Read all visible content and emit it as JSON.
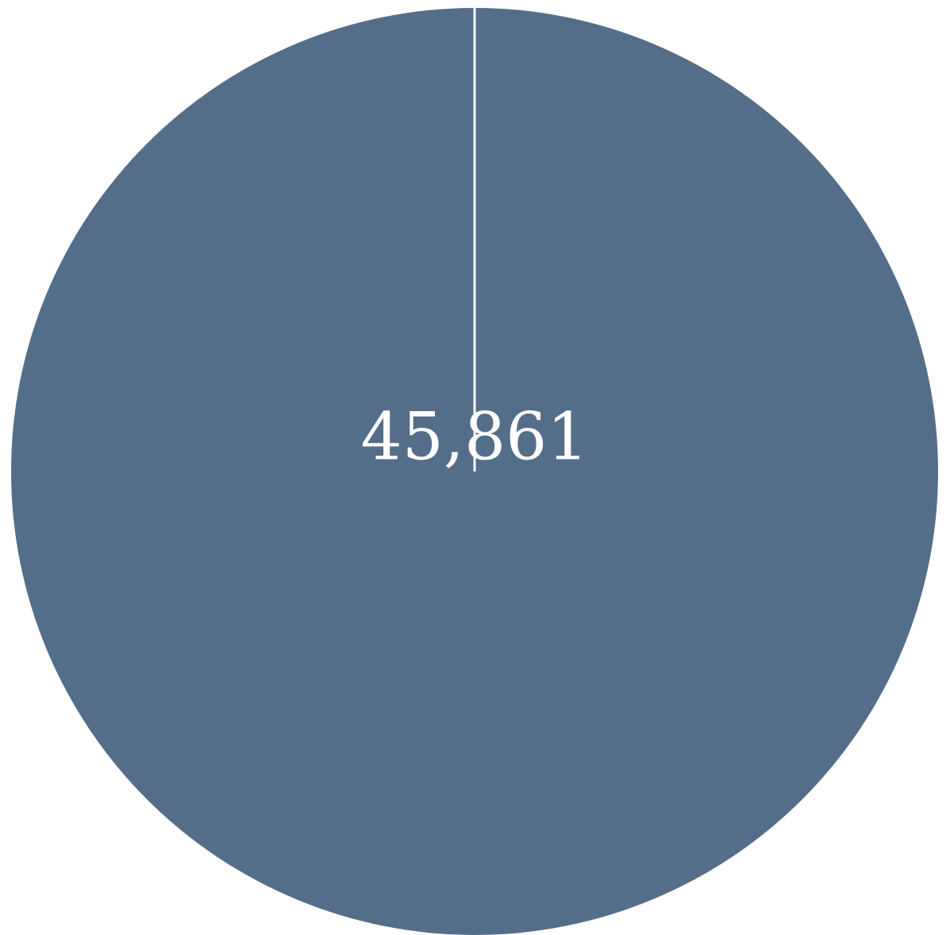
{
  "chart_data": {
    "type": "pie",
    "title": "",
    "slices": [
      {
        "label": "",
        "value": 45861,
        "value_label": "45,861",
        "color": "#546e8a"
      }
    ],
    "start_angle_deg": 0,
    "separator_color": "#ffffff"
  }
}
